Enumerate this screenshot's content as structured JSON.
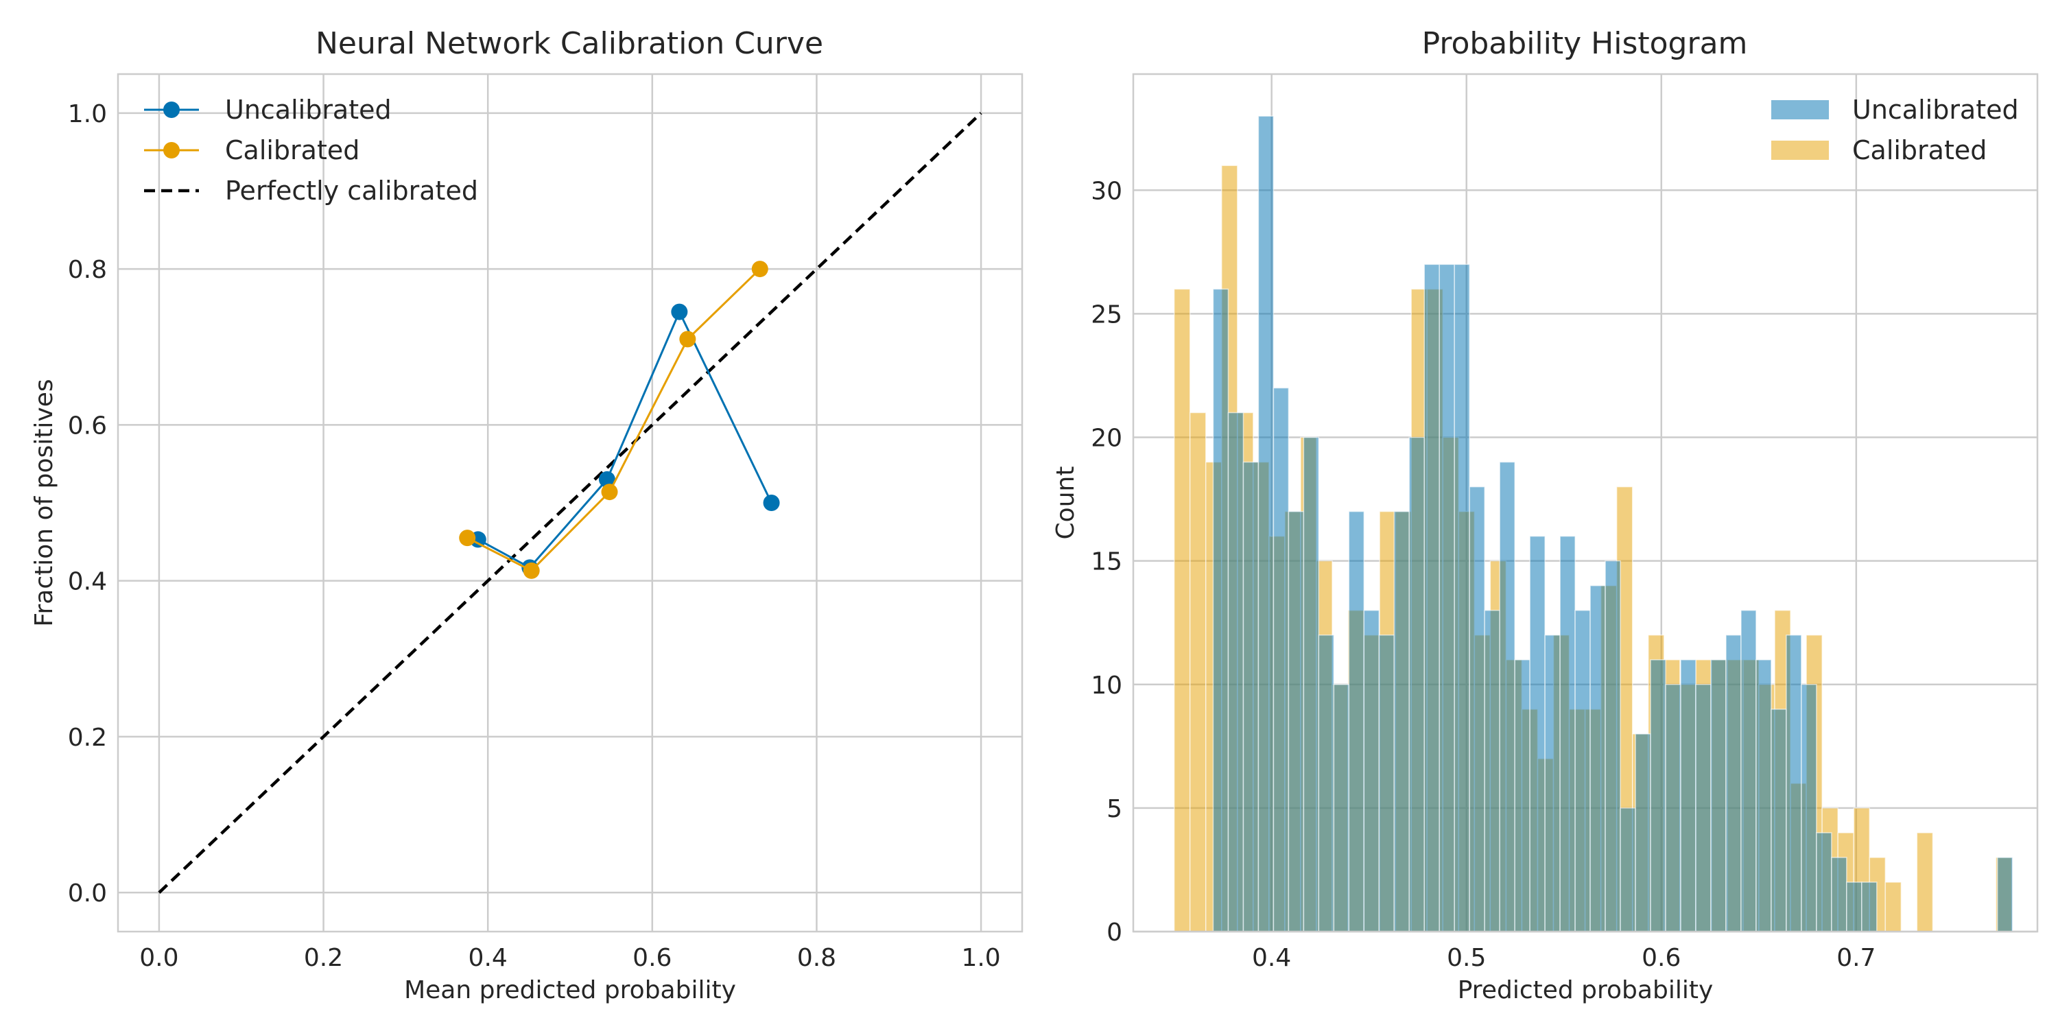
{
  "chart_data": [
    {
      "type": "line",
      "title": "Neural Network Calibration Curve",
      "xlabel": "Mean predicted probability",
      "ylabel": "Fraction of positives",
      "xlim": [
        -0.05,
        1.05
      ],
      "ylim": [
        -0.05,
        1.05
      ],
      "xticks": [
        0.0,
        0.2,
        0.4,
        0.6,
        0.8,
        1.0
      ],
      "xtick_labels": [
        "0.0",
        "0.2",
        "0.4",
        "0.6",
        "0.8",
        "1.0"
      ],
      "yticks": [
        0.0,
        0.2,
        0.4,
        0.6,
        0.8,
        1.0
      ],
      "ytick_labels": [
        "0.0",
        "0.2",
        "0.4",
        "0.6",
        "0.8",
        "1.0"
      ],
      "grid": true,
      "legend_position": "top-left",
      "series": [
        {
          "name": "Uncalibrated",
          "color": "#0072b2",
          "marker": "circle",
          "x": [
            0.388,
            0.451,
            0.545,
            0.633,
            0.745
          ],
          "y": [
            0.453,
            0.417,
            0.53,
            0.745,
            0.5
          ]
        },
        {
          "name": "Calibrated",
          "color": "#e69f00",
          "marker": "circle",
          "x": [
            0.375,
            0.453,
            0.548,
            0.643,
            0.731
          ],
          "y": [
            0.455,
            0.413,
            0.514,
            0.71,
            0.8
          ]
        },
        {
          "name": "Perfectly calibrated",
          "color": "#000000",
          "style": "dashed",
          "x": [
            0.0,
            1.0
          ],
          "y": [
            0.0,
            1.0
          ]
        }
      ]
    },
    {
      "type": "bar",
      "subtype": "overlaid-histogram",
      "title": "Probability Histogram",
      "xlabel": "Predicted probability",
      "ylabel": "Count",
      "xlim": [
        0.329,
        0.793
      ],
      "ylim": [
        0,
        34.7
      ],
      "xticks": [
        0.4,
        0.5,
        0.6,
        0.7
      ],
      "xtick_labels": [
        "0.4",
        "0.5",
        "0.6",
        "0.7"
      ],
      "yticks": [
        0,
        5,
        10,
        15,
        20,
        25,
        30
      ],
      "ytick_labels": [
        "0",
        "5",
        "10",
        "15",
        "20",
        "25",
        "30"
      ],
      "grid": true,
      "legend_position": "top-right",
      "series": [
        {
          "name": "Uncalibrated",
          "color": "#0072b2",
          "opacity": 0.5,
          "bin_start": 0.37,
          "bin_width": 0.00774,
          "values": [
            26,
            21,
            19,
            33,
            22,
            17,
            20,
            12,
            10,
            17,
            13,
            12,
            17,
            20,
            27,
            27,
            27,
            18,
            13,
            19,
            11,
            16,
            12,
            16,
            13,
            14,
            15,
            5,
            8,
            11,
            10,
            11,
            10,
            11,
            12,
            13,
            11,
            9,
            12,
            10,
            4,
            3,
            2,
            2,
            0,
            0,
            0,
            0,
            0,
            0,
            0,
            0,
            3
          ]
        },
        {
          "name": "Calibrated",
          "color": "#e69f00",
          "opacity": 0.5,
          "bin_start": 0.35,
          "bin_width": 0.00811,
          "values": [
            26,
            21,
            19,
            31,
            21,
            19,
            16,
            17,
            20,
            15,
            10,
            13,
            12,
            17,
            17,
            26,
            26,
            20,
            17,
            12,
            15,
            11,
            9,
            7,
            12,
            9,
            9,
            14,
            18,
            8,
            12,
            11,
            10,
            11,
            11,
            11,
            11,
            10,
            13,
            6,
            12,
            5,
            4,
            5,
            3,
            2,
            0,
            4,
            0,
            0,
            0,
            0,
            3
          ]
        }
      ]
    }
  ]
}
